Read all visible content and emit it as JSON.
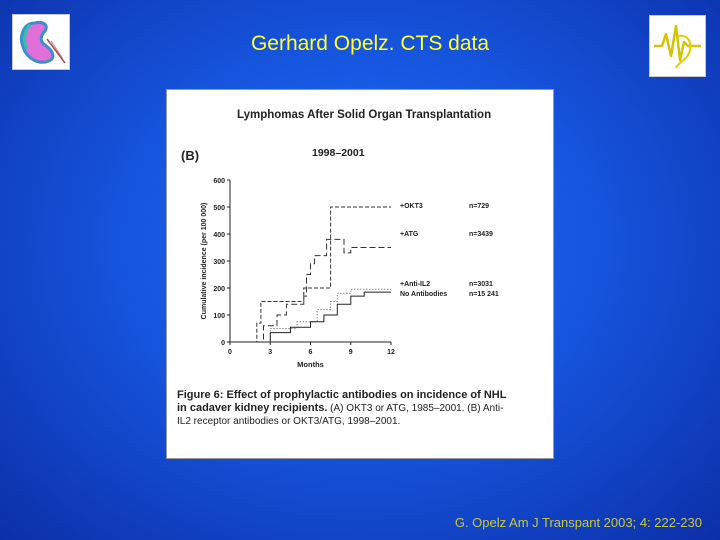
{
  "slide": {
    "title": "Gerhard Opelz. CTS data",
    "citation": "G. Opelz Am J Transpant 2003; 4: 222-230"
  },
  "figure": {
    "title": "Lymphomas After Solid Organ Transplantation",
    "panel_label": "(B)",
    "period": "1998–2001",
    "caption_bold": "Figure 6: Effect of prophylactic antibodies on incidence of NHL in cadaver kidney recipients.",
    "caption_rest": " (A) OKT3 or ATG, 1985–2001. (B) Anti-IL2 receptor antibodies or OKT3/ATG, 1998–2001."
  },
  "chart_data": {
    "type": "line",
    "step": true,
    "xlabel": "Months",
    "ylabel": "Cumulative incidence (per 100 000)",
    "xlim": [
      0,
      12
    ],
    "ylim": [
      0,
      600
    ],
    "xticks": [
      0,
      3,
      6,
      9,
      12
    ],
    "yticks": [
      0,
      100,
      200,
      300,
      400,
      500,
      600
    ],
    "series": [
      {
        "name": "+OKT3",
        "n_label": "n=729",
        "color": "#333333",
        "dash": "4,2",
        "points": [
          [
            0,
            0
          ],
          [
            2,
            0
          ],
          [
            2,
            70
          ],
          [
            2.3,
            70
          ],
          [
            2.3,
            150
          ],
          [
            5.5,
            150
          ],
          [
            5.5,
            200
          ],
          [
            7.5,
            200
          ],
          [
            7.5,
            500
          ],
          [
            12,
            500
          ]
        ]
      },
      {
        "name": "+ATG",
        "n_label": "n=3439",
        "color": "#333333",
        "dash": "6,3",
        "points": [
          [
            0,
            0
          ],
          [
            2.5,
            0
          ],
          [
            2.5,
            60
          ],
          [
            3.5,
            60
          ],
          [
            3.5,
            100
          ],
          [
            4.2,
            100
          ],
          [
            4.2,
            140
          ],
          [
            5.5,
            140
          ],
          [
            5.5,
            170
          ],
          [
            5.7,
            170
          ],
          [
            5.7,
            250
          ],
          [
            6,
            250
          ],
          [
            6,
            290
          ],
          [
            6.3,
            290
          ],
          [
            6.3,
            320
          ],
          [
            7.2,
            320
          ],
          [
            7.2,
            380
          ],
          [
            8.5,
            380
          ],
          [
            8.5,
            330
          ],
          [
            9,
            330
          ],
          [
            9,
            350
          ],
          [
            12,
            350
          ]
        ]
      },
      {
        "name": "+Anti-IL2",
        "n_label": "n=3031",
        "color": "#555555",
        "dash": "1,2",
        "points": [
          [
            0,
            0
          ],
          [
            3,
            0
          ],
          [
            3,
            50
          ],
          [
            5,
            50
          ],
          [
            5,
            75
          ],
          [
            6.5,
            75
          ],
          [
            6.5,
            120
          ],
          [
            7.5,
            120
          ],
          [
            7.5,
            150
          ],
          [
            8,
            150
          ],
          [
            8,
            180
          ],
          [
            9,
            180
          ],
          [
            9,
            195
          ],
          [
            12,
            195
          ]
        ]
      },
      {
        "name": "No Antibodies",
        "n_label": "n=15 241",
        "color": "#222222",
        "dash": "none",
        "points": [
          [
            0,
            0
          ],
          [
            3,
            0
          ],
          [
            3,
            35
          ],
          [
            4.5,
            35
          ],
          [
            4.5,
            55
          ],
          [
            6,
            55
          ],
          [
            6,
            75
          ],
          [
            7,
            75
          ],
          [
            7,
            100
          ],
          [
            8,
            100
          ],
          [
            8,
            140
          ],
          [
            9,
            140
          ],
          [
            9,
            170
          ],
          [
            10,
            170
          ],
          [
            10,
            185
          ],
          [
            12,
            185
          ]
        ]
      }
    ]
  }
}
